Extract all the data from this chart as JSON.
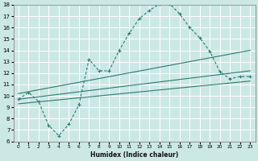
{
  "xlabel": "Humidex (Indice chaleur)",
  "background_color": "#cce8e4",
  "grid_color": "#ffffff",
  "line_color": "#2a7a70",
  "xlim": [
    -0.5,
    23.5
  ],
  "ylim": [
    6,
    18
  ],
  "xticks": [
    0,
    1,
    2,
    3,
    4,
    5,
    6,
    7,
    8,
    9,
    10,
    11,
    12,
    13,
    14,
    15,
    16,
    17,
    18,
    19,
    20,
    21,
    22,
    23
  ],
  "yticks": [
    6,
    7,
    8,
    9,
    10,
    11,
    12,
    13,
    14,
    15,
    16,
    17,
    18
  ],
  "curve_x": [
    0,
    1,
    2,
    3,
    4,
    5,
    6,
    7,
    8,
    9,
    10,
    11,
    12,
    13,
    14,
    15,
    16,
    17,
    18,
    19,
    20,
    21,
    22,
    23
  ],
  "curve_y": [
    9.7,
    10.3,
    9.5,
    7.4,
    6.5,
    7.5,
    9.2,
    13.2,
    12.2,
    12.2,
    14.0,
    15.5,
    16.8,
    17.5,
    18.1,
    18.1,
    17.2,
    16.0,
    15.1,
    13.9,
    12.1,
    11.5,
    11.7,
    11.7
  ],
  "line2_x": [
    0,
    23
  ],
  "line2_y": [
    10.2,
    14.0
  ],
  "line3_x": [
    0,
    23
  ],
  "line3_y": [
    9.7,
    12.2
  ],
  "line4_x": [
    0,
    23
  ],
  "line4_y": [
    9.3,
    11.3
  ]
}
